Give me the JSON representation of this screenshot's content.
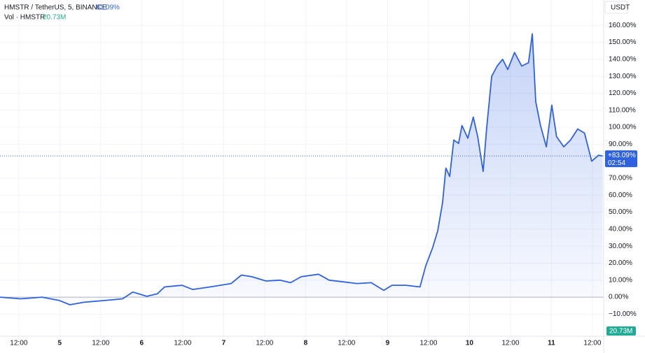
{
  "header": {
    "symbol": "HMSTR / TetherUS, 5, BINANCE",
    "change": "83.09%",
    "volume_name": "Vol · HMSTR",
    "volume_value": "20.73M"
  },
  "chart_data": {
    "type": "line",
    "currency": "USDT",
    "color": "#2f62e0",
    "grid": true,
    "x": [
      6.5,
      12.6,
      18.8,
      23.9,
      27.0,
      31.1,
      37.2,
      42.4,
      45.4,
      49.5,
      52.6,
      54.7,
      59.8,
      62.9,
      68.0,
      74.2,
      77.2,
      80.3,
      84.4,
      88.5,
      91.6,
      94.7,
      99.8,
      102.9,
      107.0,
      111.1,
      115.2,
      118.9,
      121.3,
      125.4,
      129.5,
      131.2,
      133.2,
      134.7,
      136.1,
      137.1,
      138.2,
      139.4,
      140.8,
      141.8,
      143.5,
      145.1,
      146.4,
      148.0,
      149.0,
      150.5,
      152.1,
      153.7,
      155.2,
      157.2,
      159.3,
      161.3,
      162.4,
      163.4,
      164.8,
      166.5,
      168.1,
      169.5,
      171.6,
      173.6,
      175.7,
      177.7,
      179.8,
      181.8,
      183.0
    ],
    "values": [
      0,
      -1,
      0,
      -2,
      -4.5,
      -3,
      -2,
      -1,
      3,
      0.5,
      2,
      6,
      7,
      4.5,
      6,
      8,
      13,
      12,
      9.5,
      10,
      8.5,
      12,
      13.5,
      10,
      9,
      8,
      8.5,
      4,
      7,
      7,
      6,
      18.5,
      29,
      39,
      55.5,
      76,
      71,
      92.5,
      90.5,
      101,
      93.5,
      106,
      94.5,
      74,
      99,
      130,
      136,
      140,
      134,
      144,
      136,
      138,
      155,
      115,
      101,
      88.5,
      113,
      94.5,
      88.5,
      92.5,
      99,
      96.5,
      80,
      83.5,
      83.09
    ],
    "xlim": [
      6.5,
      183.3
    ],
    "xticks": [
      {
        "value": 12,
        "label": "12:00"
      },
      {
        "value": 24,
        "label": "5"
      },
      {
        "value": 36,
        "label": "12:00"
      },
      {
        "value": 48,
        "label": "6"
      },
      {
        "value": 60,
        "label": "12:00"
      },
      {
        "value": 72,
        "label": "7"
      },
      {
        "value": 84,
        "label": "12:00"
      },
      {
        "value": 96,
        "label": "8"
      },
      {
        "value": 108,
        "label": "12:00"
      },
      {
        "value": 120,
        "label": "9"
      },
      {
        "value": 132,
        "label": "12:00"
      },
      {
        "value": 144,
        "label": "10"
      },
      {
        "value": 156,
        "label": "12:00"
      },
      {
        "value": 168,
        "label": "11"
      },
      {
        "value": 180,
        "label": "12:00"
      }
    ],
    "ylim": [
      -22.6,
      174.9
    ],
    "yticks": [
      {
        "value": -10,
        "label": "−10.00%"
      },
      {
        "value": 0,
        "label": "0.00%"
      },
      {
        "value": 10,
        "label": "10.00%"
      },
      {
        "value": 20,
        "label": "20.00%"
      },
      {
        "value": 30,
        "label": "30.00%"
      },
      {
        "value": 40,
        "label": "40.00%"
      },
      {
        "value": 50,
        "label": "50.00%"
      },
      {
        "value": 60,
        "label": "60.00%"
      },
      {
        "value": 70,
        "label": "70.00%"
      },
      {
        "value": 90,
        "label": "90.00%"
      },
      {
        "value": 100,
        "label": "100.00%"
      },
      {
        "value": 110,
        "label": "110.00%"
      },
      {
        "value": 120,
        "label": "120.00%"
      },
      {
        "value": 130,
        "label": "130.00%"
      },
      {
        "value": 140,
        "label": "140.00%"
      },
      {
        "value": 150,
        "label": "150.00%"
      },
      {
        "value": 160,
        "label": "160.00%"
      }
    ],
    "last_value": {
      "value": 83.09,
      "label": "+83.09%"
    },
    "countdown": "02:54",
    "volume_badge": "20.73M"
  }
}
